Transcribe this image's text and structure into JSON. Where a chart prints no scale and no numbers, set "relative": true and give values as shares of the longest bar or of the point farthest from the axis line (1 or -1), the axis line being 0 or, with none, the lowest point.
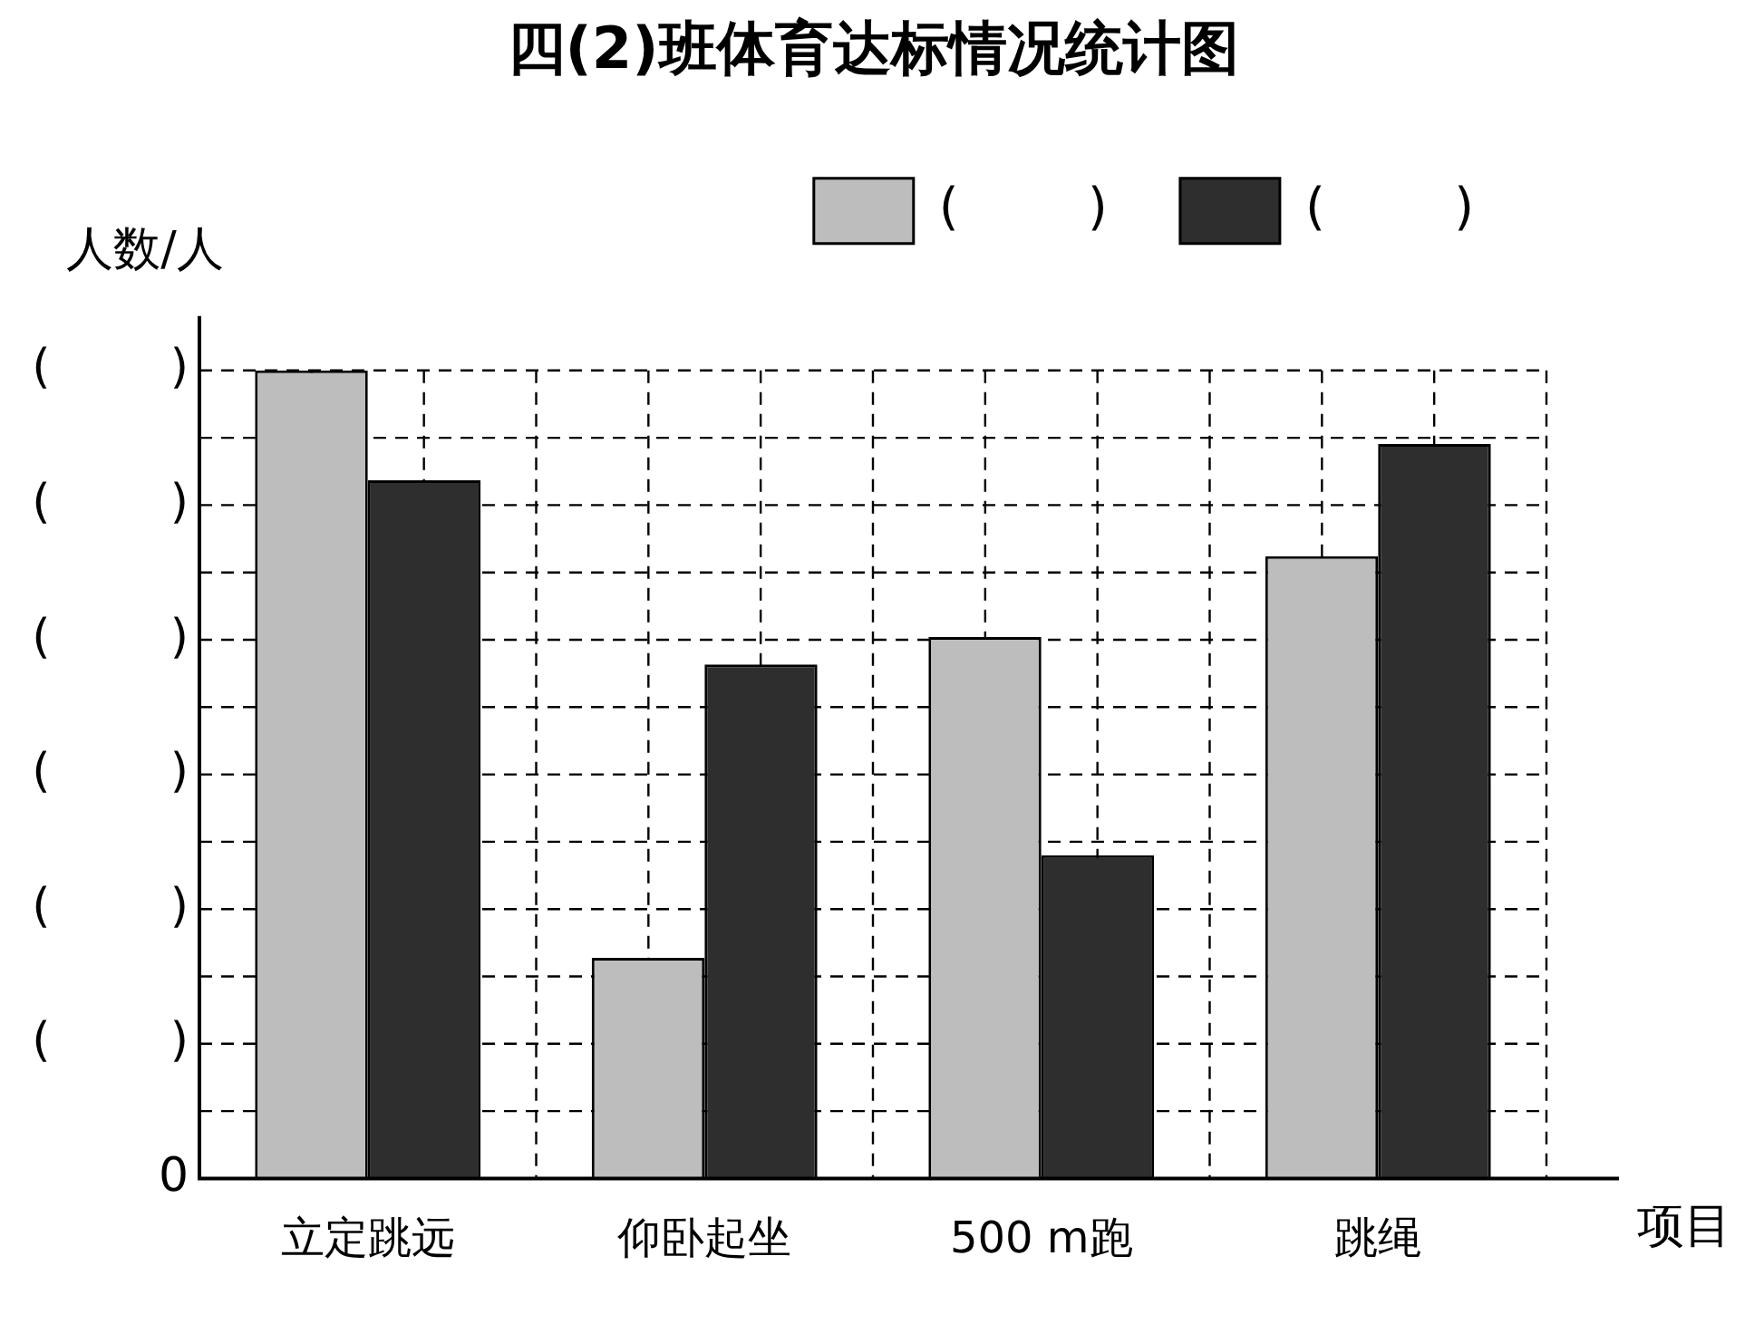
{
  "chart_data": {
    "type": "bar",
    "title": "四(2)班体育达标情况统计图",
    "ylabel": "人数/人",
    "xlabel": "项目",
    "categories": [
      "立定跳远",
      "仰卧起坐",
      "500 m跑",
      "跳绳"
    ],
    "series": [
      {
        "name": "(        )",
        "color": "#bdbdbd",
        "values": [
          1,
          0.273,
          0.67,
          0.77
        ]
      },
      {
        "name": "(        )",
        "color": "#2e2e2e",
        "values": [
          0.864,
          0.636,
          0.4,
          0.909
        ]
      }
    ],
    "relative": true,
    "grid": true,
    "legend": "top right",
    "annotations": [
      "0",
      "(        )",
      "(        )",
      "(        )",
      "(        )",
      "(        )",
      "(        )"
    ]
  }
}
